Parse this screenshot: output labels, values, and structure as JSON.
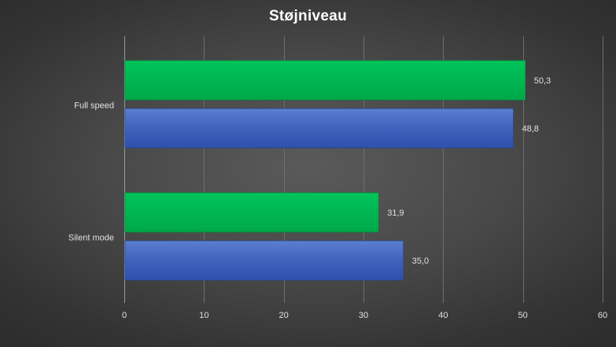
{
  "chart_data": {
    "type": "bar",
    "orientation": "horizontal",
    "title": "Støjniveau",
    "categories": [
      "Full speed",
      "Silent mode"
    ],
    "series": [
      {
        "color": "#00b050",
        "values": [
          50.3,
          31.9
        ],
        "labels": [
          "50,3",
          "31,9"
        ]
      },
      {
        "color": "#4466c0",
        "values": [
          48.8,
          35.0
        ],
        "labels": [
          "48,8",
          "35,0"
        ]
      }
    ],
    "xlim": [
      0,
      60
    ],
    "xticks": [
      0,
      10,
      20,
      30,
      40,
      50,
      60
    ],
    "xtick_labels": [
      "0",
      "10",
      "20",
      "30",
      "40",
      "50",
      "60"
    ],
    "grid": true,
    "legend": "none"
  }
}
